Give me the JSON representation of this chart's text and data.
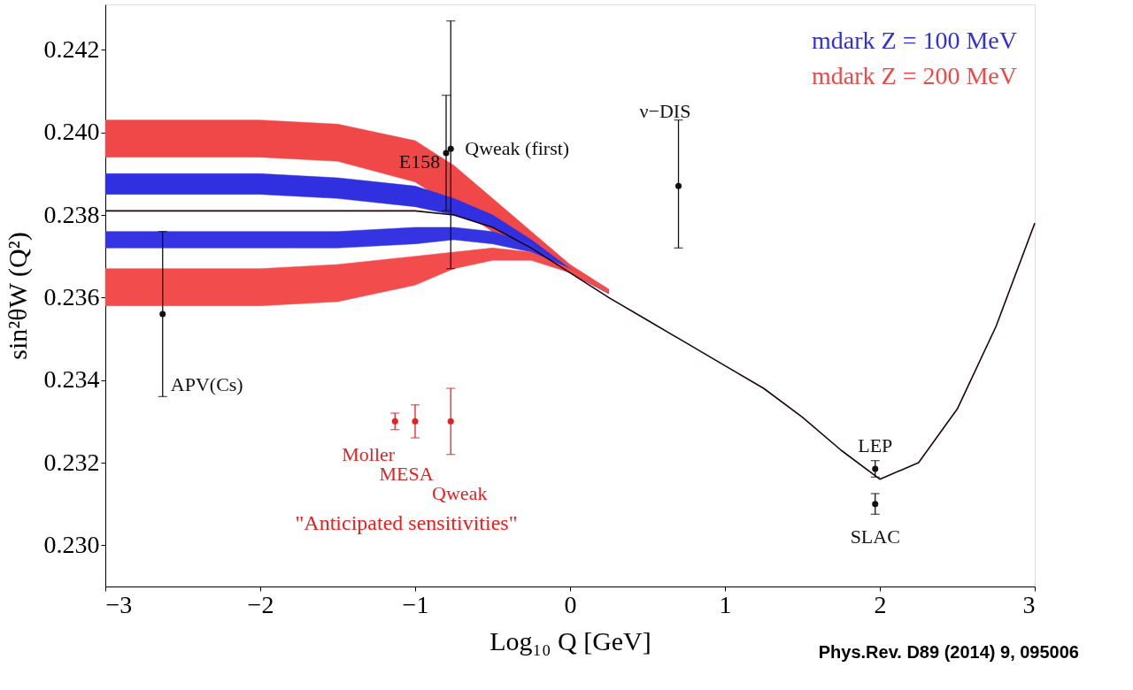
{
  "chart_data": {
    "type": "line",
    "xlabel": "Log₁₀ Q [GeV]",
    "ylabel": "sin²θW (Q²)",
    "xlim": [
      -3,
      3
    ],
    "ylim": [
      0.229,
      0.2431
    ],
    "xticks": [
      {
        "value": -3,
        "label": "−3"
      },
      {
        "value": -2,
        "label": "−2"
      },
      {
        "value": -1,
        "label": "−1"
      },
      0,
      1,
      2,
      3
    ],
    "yticks": [
      {
        "value": 0.23,
        "label": "0.230"
      },
      0.232,
      0.234,
      0.236,
      0.238,
      {
        "value": 0.24,
        "label": "0.240"
      },
      0.242
    ],
    "grid": false,
    "series": [
      {
        "type": "line",
        "name": "mdark Z = 200 MeV",
        "color": "#f04848",
        "x": [
          -3,
          -2,
          -1.5,
          -1,
          -0.75,
          -0.5,
          -0.25,
          0,
          0.25
        ],
        "values": [
          null,
          null,
          null,
          null,
          null,
          null,
          null,
          null,
          null
        ],
        "upper": [
          0.2403,
          0.2403,
          0.2402,
          0.2398,
          0.2392,
          0.2384,
          0.2376,
          0.2368,
          0.2362
        ],
        "lower": [
          0.2394,
          0.2394,
          0.2393,
          0.2388,
          0.2382,
          0.2376,
          0.2371,
          0.2366,
          0.2361
        ]
      },
      {
        "type": "line",
        "name": "mdark Z = 100 MeV",
        "color": "#3030e0",
        "x": [
          -3,
          -2,
          -1.5,
          -1,
          -0.75,
          -0.5,
          -0.25,
          0,
          0.25
        ],
        "values": [
          null,
          null,
          null,
          null,
          null,
          null,
          null,
          null,
          null
        ],
        "upper": [
          0.239,
          0.239,
          0.2389,
          0.2387,
          0.2384,
          0.238,
          0.2374,
          0.2367,
          0.2361
        ],
        "lower": [
          0.2385,
          0.2385,
          0.2384,
          0.2382,
          0.238,
          0.2377,
          0.2372,
          0.2366,
          0.2361
        ]
      },
      {
        "type": "line",
        "color": "#3434e2",
        "x": [
          -3,
          -2,
          -1.5,
          -1,
          -0.75,
          -0.5,
          -0.25,
          0,
          0.25
        ],
        "values": [
          null,
          null,
          null,
          null,
          null,
          null,
          null,
          null,
          null
        ],
        "upper": [
          0.2376,
          0.2376,
          0.2376,
          0.2377,
          0.2377,
          0.2376,
          0.2373,
          0.2367,
          0.2361
        ],
        "lower": [
          0.2372,
          0.2372,
          0.2372,
          0.2373,
          0.2374,
          0.2373,
          0.2371,
          0.2366,
          0.2361
        ]
      },
      {
        "type": "line",
        "color": "#f24c4c",
        "x": [
          -3,
          -2,
          -1.5,
          -1,
          -0.75,
          -0.5,
          -0.25,
          0,
          0.25
        ],
        "values": [
          null,
          null,
          null,
          null,
          null,
          null,
          null,
          null,
          null
        ],
        "upper": [
          0.2367,
          0.2367,
          0.2368,
          0.237,
          0.2371,
          0.2372,
          0.2371,
          0.2367,
          0.2362
        ],
        "lower": [
          0.2358,
          0.2358,
          0.2359,
          0.2363,
          0.2367,
          0.2369,
          0.2369,
          0.2366,
          0.2361
        ]
      },
      {
        "color": "#200010",
        "x": [
          -3,
          -2,
          -1,
          -0.75,
          -0.5,
          -0.25,
          0,
          0.25,
          0.5,
          0.75,
          1,
          1.25,
          1.5,
          1.75,
          2,
          2.25,
          2.5,
          2.75,
          3
        ],
        "values": [
          0.2381,
          0.2381,
          0.2381,
          0.238,
          0.2377,
          0.2372,
          0.2366,
          0.236,
          0.23545,
          0.2349,
          0.23435,
          0.2338,
          0.2331,
          0.2323,
          0.2316,
          0.232,
          0.2333,
          0.2353,
          0.2378
        ]
      },
      {
        "type": "scatter",
        "marker": "circle",
        "color": "#111111",
        "x": [
          -2.63,
          -0.8,
          -0.77,
          0.7,
          1.97,
          1.97
        ],
        "values": [
          0.2356,
          0.2395,
          0.2396,
          0.2387,
          0.23185,
          0.231
        ],
        "errors": [
          [
            0.2336,
            0.2376
          ],
          [
            0.2381,
            0.2409
          ],
          [
            0.2367,
            0.2427
          ],
          [
            0.2372,
            0.2403
          ],
          [
            0.23165,
            0.23205
          ],
          [
            0.23075,
            0.23125
          ]
        ],
        "value_labels": [
          "APV(Cs)",
          "E158",
          "Qweak (first)",
          "ν−DIS",
          "LEP",
          "SLAC"
        ]
      },
      {
        "type": "scatter",
        "marker": "circle",
        "name": "\"Anticipated sensitivities\"",
        "color": "#e82020",
        "x": [
          -1.13,
          -1.0,
          -0.77
        ],
        "values": [
          0.233,
          0.233,
          0.233
        ],
        "errors": [
          [
            0.2328,
            0.2332
          ],
          [
            0.2326,
            0.2334
          ],
          [
            0.2322,
            0.2338
          ]
        ],
        "value_labels": [
          "Moller",
          "MESA",
          "Qweak"
        ]
      }
    ],
    "annotations": [
      "Phys.Rev. D89 (2014) 9, 095006"
    ]
  }
}
